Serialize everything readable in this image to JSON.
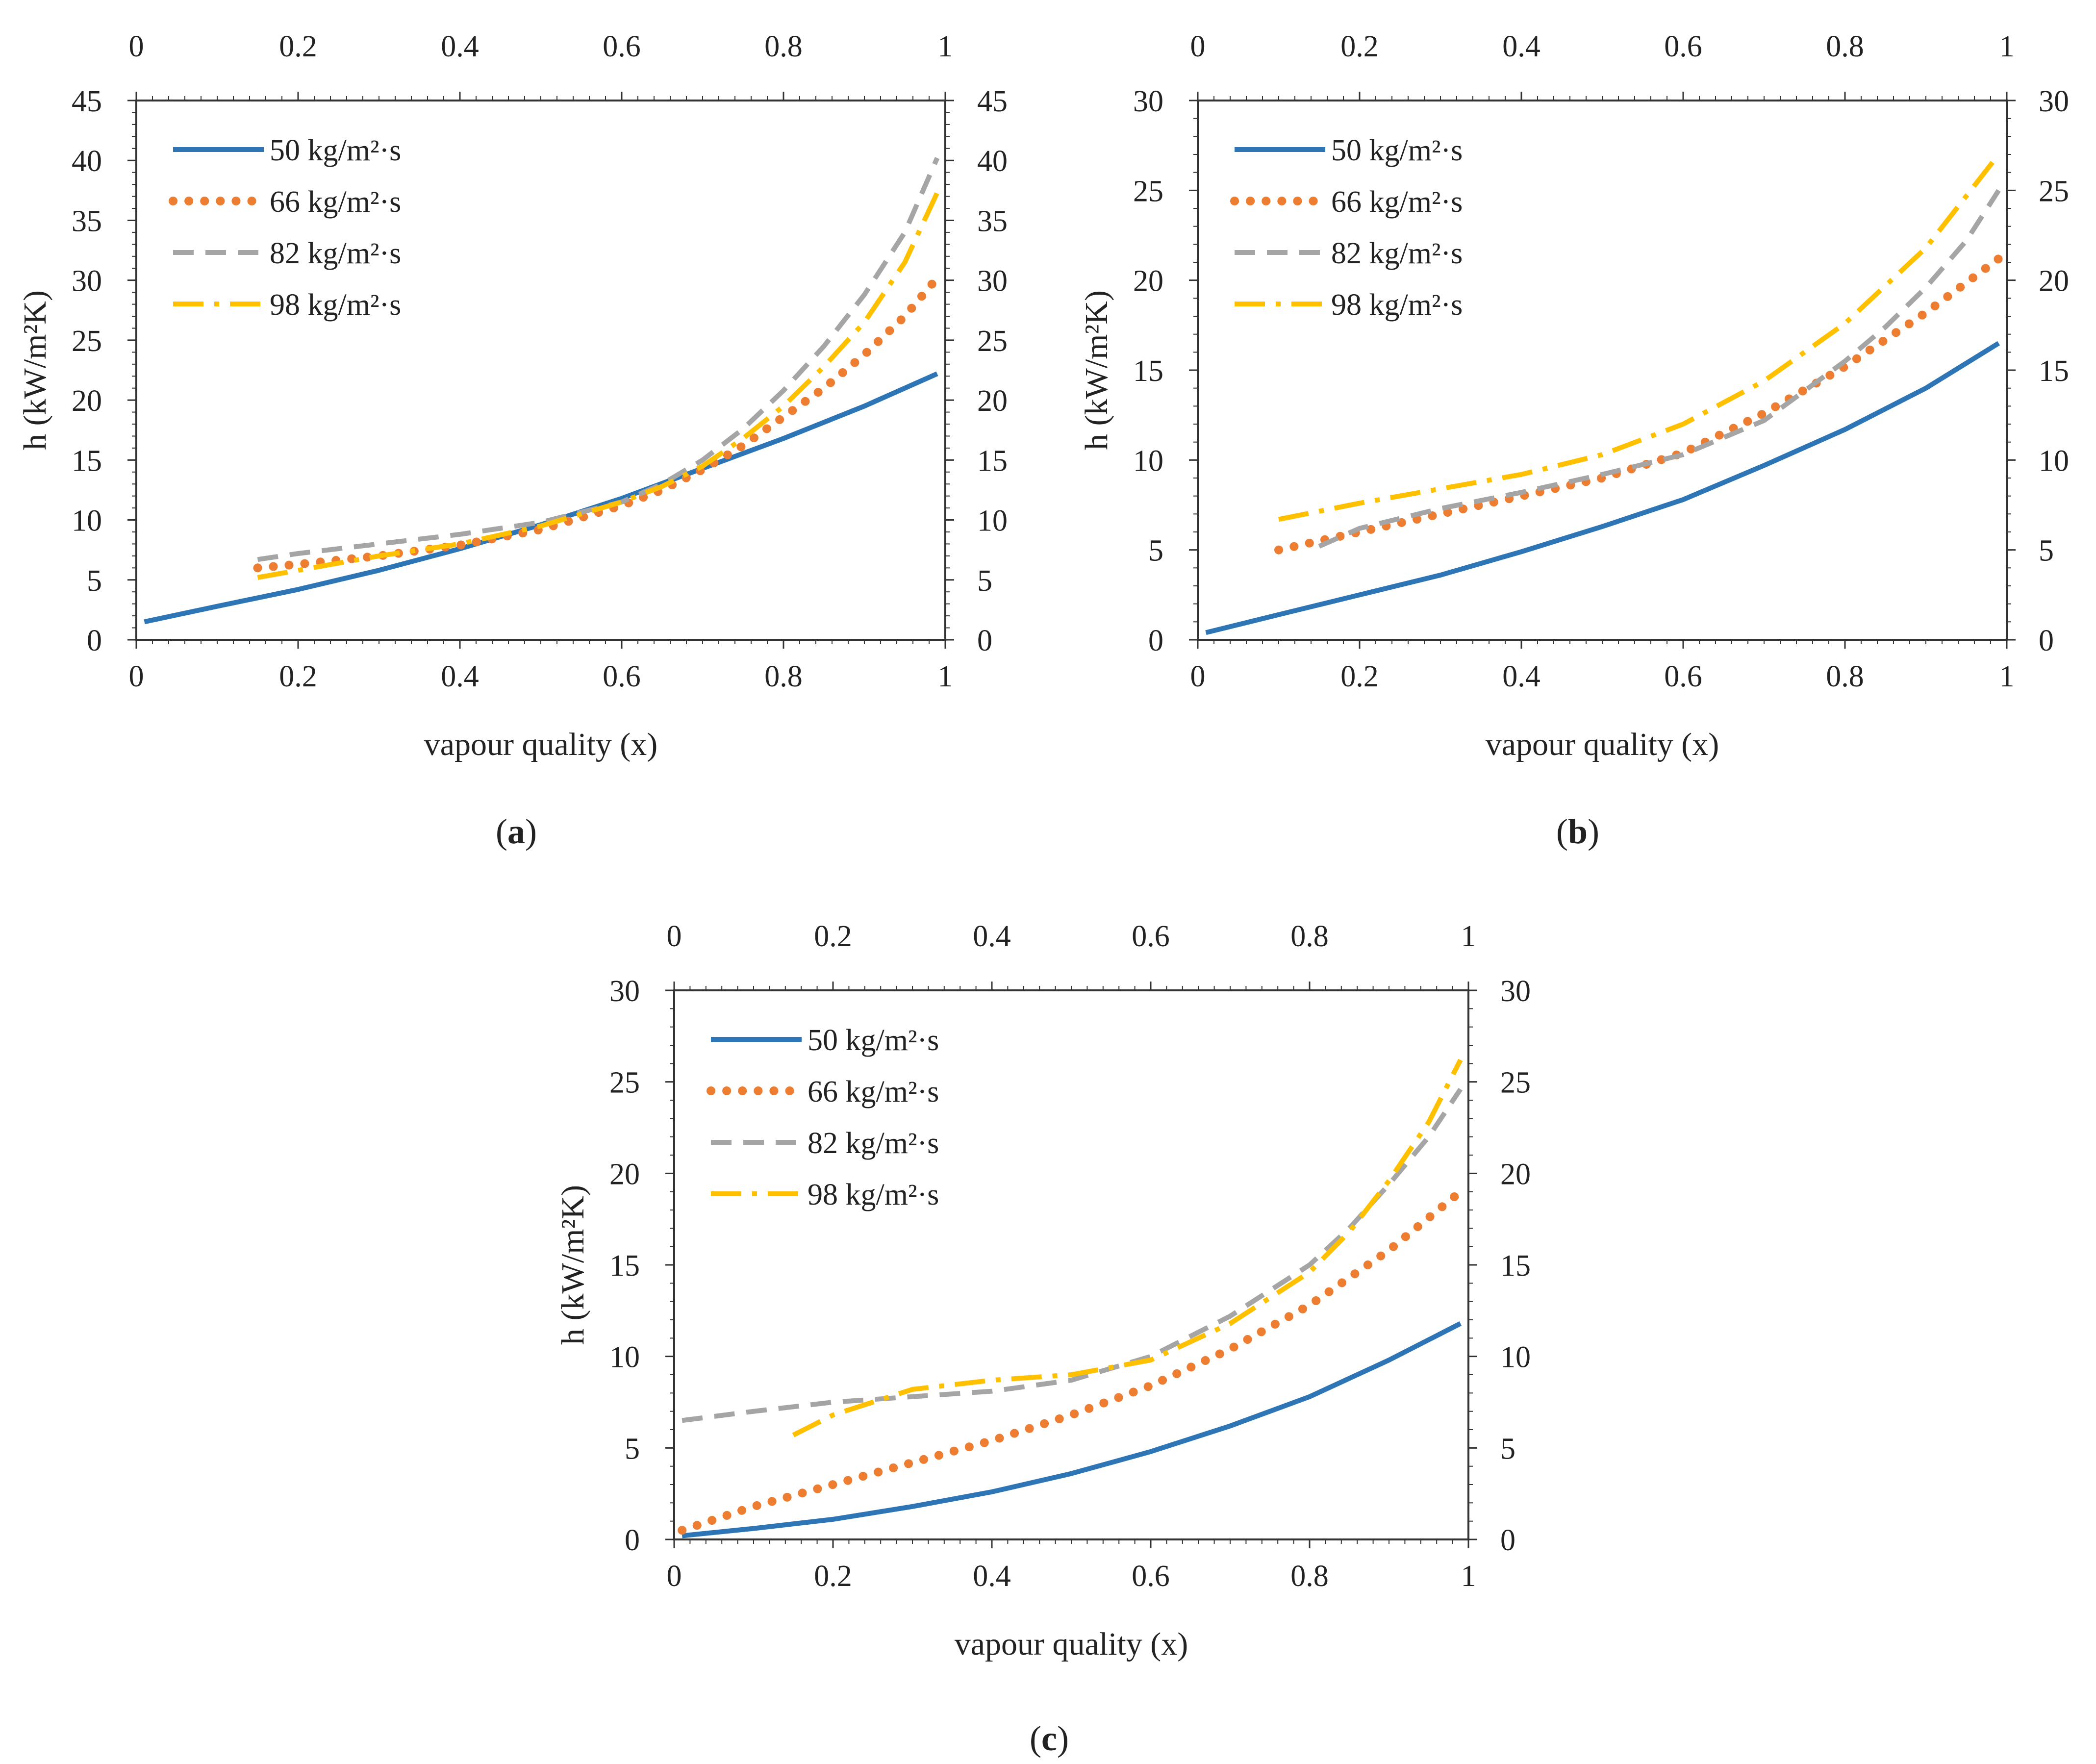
{
  "figure_captions": [
    "(a)",
    "(b)",
    "(c)"
  ],
  "chart_data": [
    {
      "id": "a",
      "type": "line",
      "caption_letter": "a",
      "xlabel": "vapour quality (x)",
      "ylabel": "h (kW/m²K)",
      "xlim": [
        0,
        1
      ],
      "ylim": [
        0,
        45
      ],
      "xticks": [
        "0",
        "0.2",
        "0.4",
        "0.6",
        "0.8",
        "1"
      ],
      "yticks": [
        "0",
        "5",
        "10",
        "15",
        "20",
        "25",
        "30",
        "35",
        "40",
        "45"
      ],
      "xtick_values": [
        0,
        0.2,
        0.4,
        0.6,
        0.8,
        1
      ],
      "ytick_values": [
        0,
        5,
        10,
        15,
        20,
        25,
        30,
        35,
        40,
        45
      ],
      "legend_position": "top-left",
      "series": [
        {
          "name": "50 kg/m²·s",
          "color": "#2E75B6",
          "style": "solid",
          "x": [
            0.01,
            0.1,
            0.2,
            0.3,
            0.4,
            0.5,
            0.6,
            0.7,
            0.8,
            0.9,
            0.99
          ],
          "y": [
            1.5,
            2.8,
            4.2,
            5.8,
            7.6,
            9.6,
            11.8,
            14.3,
            16.8,
            19.5,
            22.2
          ]
        },
        {
          "name": "66 kg/m²·s",
          "color": "#ED7D31",
          "style": "dotted",
          "x": [
            0.15,
            0.2,
            0.3,
            0.4,
            0.5,
            0.6,
            0.65,
            0.7,
            0.75,
            0.8,
            0.85,
            0.9,
            0.95,
            0.99
          ],
          "y": [
            6.0,
            6.3,
            7.0,
            7.9,
            9.2,
            11.2,
            12.5,
            14.2,
            16.2,
            18.6,
            21.0,
            23.8,
            27.0,
            30.2
          ]
        },
        {
          "name": "82 kg/m²·s",
          "color": "#A5A5A5",
          "style": "dashed",
          "x": [
            0.15,
            0.2,
            0.3,
            0.4,
            0.5,
            0.6,
            0.65,
            0.7,
            0.75,
            0.8,
            0.85,
            0.9,
            0.95,
            0.99
          ],
          "y": [
            6.7,
            7.2,
            8.0,
            8.8,
            9.8,
            11.5,
            13.0,
            15.0,
            17.6,
            20.8,
            24.5,
            28.8,
            34.0,
            40.2
          ]
        },
        {
          "name": "98 kg/m²·s",
          "color": "#FFC000",
          "style": "dashdot",
          "x": [
            0.15,
            0.2,
            0.3,
            0.4,
            0.5,
            0.6,
            0.65,
            0.7,
            0.75,
            0.8,
            0.85,
            0.9,
            0.95,
            0.99
          ],
          "y": [
            5.2,
            5.8,
            7.0,
            8.0,
            9.5,
            11.5,
            12.8,
            14.5,
            16.8,
            19.5,
            22.8,
            26.5,
            31.5,
            37.3
          ]
        }
      ]
    },
    {
      "id": "b",
      "type": "line",
      "caption_letter": "b",
      "xlabel": "vapour quality (x)",
      "ylabel": "h (kW/m²K)",
      "xlim": [
        0,
        1
      ],
      "ylim": [
        0,
        30
      ],
      "xticks": [
        "0",
        "0.2",
        "0.4",
        "0.6",
        "0.8",
        "1"
      ],
      "yticks": [
        "0",
        "5",
        "10",
        "15",
        "20",
        "25",
        "30"
      ],
      "xtick_values": [
        0,
        0.2,
        0.4,
        0.6,
        0.8,
        1
      ],
      "ytick_values": [
        0,
        5,
        10,
        15,
        20,
        25,
        30
      ],
      "legend_position": "top-left",
      "series": [
        {
          "name": "50 kg/m²·s",
          "color": "#2E75B6",
          "style": "solid",
          "x": [
            0.01,
            0.1,
            0.2,
            0.3,
            0.4,
            0.5,
            0.6,
            0.7,
            0.8,
            0.9,
            0.99
          ],
          "y": [
            0.4,
            1.4,
            2.5,
            3.6,
            4.9,
            6.3,
            7.8,
            9.7,
            11.7,
            14.0,
            16.5
          ]
        },
        {
          "name": "66 kg/m²·s",
          "color": "#ED7D31",
          "style": "dotted",
          "x": [
            0.1,
            0.2,
            0.3,
            0.4,
            0.5,
            0.6,
            0.7,
            0.8,
            0.9,
            0.99
          ],
          "y": [
            5.0,
            6.0,
            7.0,
            8.0,
            9.0,
            10.4,
            12.6,
            15.2,
            18.2,
            21.2
          ]
        },
        {
          "name": "82 kg/m²·s",
          "color": "#A5A5A5",
          "style": "dashed",
          "x": [
            0.15,
            0.2,
            0.3,
            0.4,
            0.5,
            0.6,
            0.7,
            0.8,
            0.85,
            0.9,
            0.95,
            0.99
          ],
          "y": [
            5.2,
            6.2,
            7.3,
            8.2,
            9.2,
            10.3,
            12.2,
            15.5,
            17.4,
            19.6,
            22.2,
            25.0
          ]
        },
        {
          "name": "98 kg/m²·s",
          "color": "#FFC000",
          "style": "dashdot",
          "x": [
            0.1,
            0.2,
            0.3,
            0.4,
            0.5,
            0.6,
            0.7,
            0.8,
            0.9,
            0.99
          ],
          "y": [
            6.7,
            7.6,
            8.4,
            9.2,
            10.3,
            12.0,
            14.4,
            17.6,
            21.8,
            27.0
          ]
        }
      ]
    },
    {
      "id": "c",
      "type": "line",
      "caption_letter": "c",
      "xlabel": "vapour quality (x)",
      "ylabel": "h (kW/m²K)",
      "xlim": [
        0,
        1
      ],
      "ylim": [
        0,
        30
      ],
      "xticks": [
        "0",
        "0.2",
        "0.4",
        "0.6",
        "0.8",
        "1"
      ],
      "yticks": [
        "0",
        "5",
        "10",
        "15",
        "20",
        "25",
        "30"
      ],
      "xtick_values": [
        0,
        0.2,
        0.4,
        0.6,
        0.8,
        1
      ],
      "ytick_values": [
        0,
        5,
        10,
        15,
        20,
        25,
        30
      ],
      "legend_position": "top-left",
      "series": [
        {
          "name": "50 kg/m²·s",
          "color": "#2E75B6",
          "style": "solid",
          "x": [
            0.01,
            0.1,
            0.2,
            0.3,
            0.4,
            0.5,
            0.6,
            0.7,
            0.8,
            0.9,
            0.99
          ],
          "y": [
            0.2,
            0.6,
            1.1,
            1.8,
            2.6,
            3.6,
            4.8,
            6.2,
            7.8,
            9.8,
            11.8
          ]
        },
        {
          "name": "66 kg/m²·s",
          "color": "#ED7D31",
          "style": "dotted",
          "x": [
            0.01,
            0.1,
            0.2,
            0.3,
            0.4,
            0.5,
            0.6,
            0.7,
            0.8,
            0.9,
            0.99
          ],
          "y": [
            0.5,
            1.8,
            3.0,
            4.2,
            5.4,
            6.8,
            8.4,
            10.4,
            12.8,
            15.8,
            19.0
          ]
        },
        {
          "name": "82 kg/m²·s",
          "color": "#A5A5A5",
          "style": "dashed",
          "x": [
            0.01,
            0.1,
            0.2,
            0.3,
            0.4,
            0.5,
            0.6,
            0.7,
            0.8,
            0.85,
            0.9,
            0.95,
            0.99
          ],
          "y": [
            6.5,
            7.0,
            7.5,
            7.8,
            8.1,
            8.7,
            10.0,
            12.2,
            15.0,
            17.0,
            19.4,
            22.0,
            24.6
          ]
        },
        {
          "name": "98 kg/m²·s",
          "color": "#FFC000",
          "style": "dashdot",
          "x": [
            0.15,
            0.2,
            0.3,
            0.4,
            0.5,
            0.6,
            0.7,
            0.8,
            0.85,
            0.9,
            0.95,
            0.99
          ],
          "y": [
            5.7,
            6.8,
            8.2,
            8.7,
            9.0,
            9.8,
            11.8,
            14.6,
            16.8,
            19.6,
            22.8,
            26.2
          ]
        }
      ]
    }
  ]
}
